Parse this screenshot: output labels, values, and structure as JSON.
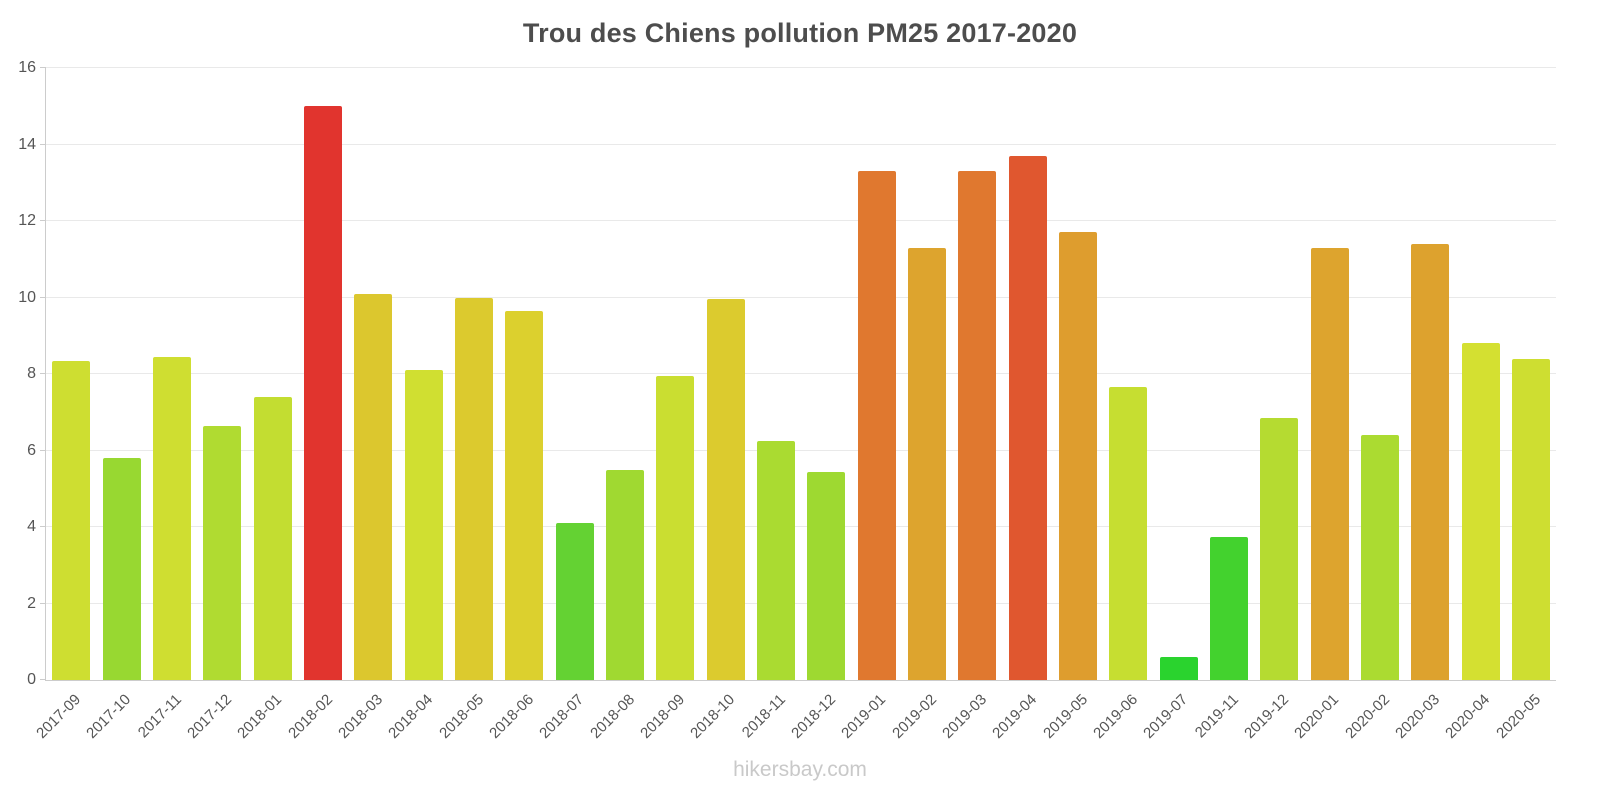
{
  "page": {
    "title": "Trou des Chiens pollution PM25 2017-2020",
    "watermark": "hikersbay.com"
  },
  "chart_data": {
    "type": "bar",
    "title": "Trou des Chiens pollution PM25 2017-2020",
    "xlabel": "",
    "ylabel": "",
    "ylim": [
      0,
      16
    ],
    "yticks": [
      0,
      2,
      4,
      6,
      8,
      10,
      12,
      14,
      16
    ],
    "grid": true,
    "legend": false,
    "watermark": "hikersbay.com",
    "categories": [
      "2017-09",
      "2017-10",
      "2017-11",
      "2017-12",
      "2018-01",
      "2018-02",
      "2018-03",
      "2018-04",
      "2018-05",
      "2018-06",
      "2018-07",
      "2018-08",
      "2018-09",
      "2018-10",
      "2018-11",
      "2018-12",
      "2019-01",
      "2019-02",
      "2019-03",
      "2019-04",
      "2019-05",
      "2019-06",
      "2019-07",
      "2019-11",
      "2019-12",
      "2020-01",
      "2020-02",
      "2020-03",
      "2020-04",
      "2020-05"
    ],
    "values": [
      8.35,
      5.8,
      8.45,
      6.65,
      7.4,
      15.0,
      10.1,
      8.1,
      10.0,
      9.65,
      4.1,
      5.5,
      7.95,
      9.95,
      6.25,
      5.45,
      13.3,
      11.3,
      13.3,
      13.7,
      11.7,
      7.65,
      0.6,
      3.75,
      6.85,
      11.3,
      6.4,
      11.4,
      8.8,
      8.4
    ],
    "colors": [
      "#cede31",
      "#98d831",
      "#cfde31",
      "#b0db31",
      "#c3dd31",
      "#e1342e",
      "#dcc72e",
      "#d0df31",
      "#dcca2e",
      "#dcd02e",
      "#64d233",
      "#a0d931",
      "#cade31",
      "#dccb2e",
      "#aadb31",
      "#9ed931",
      "#e0782f",
      "#dda42e",
      "#e0782f",
      "#e0572f",
      "#de9d2e",
      "#c6de31",
      "#2ad32e",
      "#43d22e",
      "#b5db31",
      "#dda42e",
      "#abdb31",
      "#dda22e",
      "#d4e031",
      "#cede31"
    ],
    "title_color": "#4d4d4d",
    "axis_color": "#cccccc",
    "grid_color": "#e9e9e9",
    "label_color": "#555555"
  }
}
